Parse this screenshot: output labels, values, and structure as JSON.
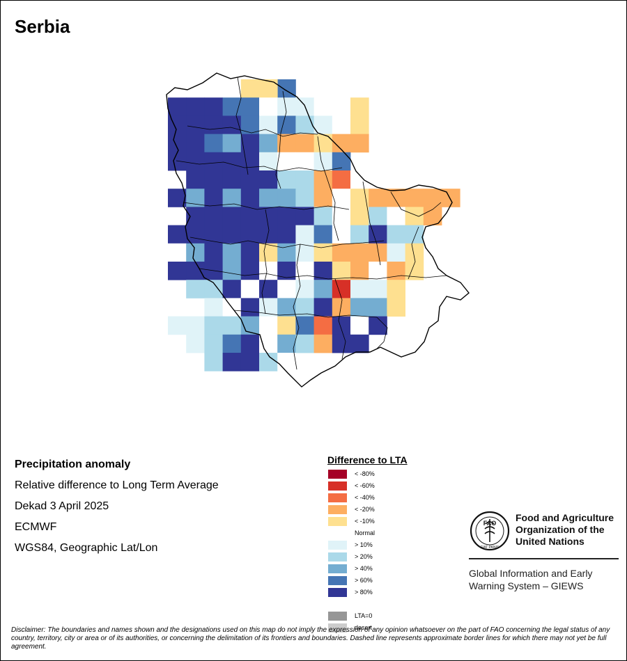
{
  "title": "Serbia",
  "info": {
    "line1": "Precipitation anomaly",
    "line2": "Relative difference to Long Term Average",
    "line3": "Dekad 3 April 2025",
    "line4": "ECMWF",
    "line5": "WGS84, Geographic Lat/Lon"
  },
  "legend": {
    "title": "Difference to LTA",
    "items": [
      {
        "label": "< -80%",
        "color": "#a50026"
      },
      {
        "label": "< -60%",
        "color": "#d73027"
      },
      {
        "label": "< -40%",
        "color": "#f46d43"
      },
      {
        "label": "< -20%",
        "color": "#fdae61"
      },
      {
        "label": "< -10%",
        "color": "#fee090"
      },
      {
        "label": "Normal",
        "color": "#ffffff"
      },
      {
        "label": "> 10%",
        "color": "#e0f3f8"
      },
      {
        "label": "> 20%",
        "color": "#abd9e9"
      },
      {
        "label": "> 40%",
        "color": "#74add1"
      },
      {
        "label": "> 60%",
        "color": "#4575b4"
      },
      {
        "label": "> 80%",
        "color": "#313695"
      },
      {
        "label": "",
        "color": "#ffffff"
      },
      {
        "label": "LTA=0",
        "color": "#969696"
      },
      {
        "label": "desert",
        "color": "#cccccc"
      }
    ]
  },
  "organization": {
    "logo_text": "FAO",
    "logo_motto": "FIAT PANIS",
    "name_line1": "Food and Agriculture",
    "name_line2": "Organization of the",
    "name_line3": "United Nations",
    "giews_line1": "Global Information and Early",
    "giews_line2": "Warning System – GIEWS"
  },
  "disclaimer": "Disclaimer: The boundaries and names shown and the designations used on this map do not imply the expression of any opinion whatsoever on the part of FAO concerning the legal status of any country, territory, city or area or of its authorities, or concerning the delimitation of its frontiers and boundaries. Dashed line represents approximate border lines for which there may not yet be full agreement.",
  "grid": {
    "rows": [
      "....6777......",
      "....777755....",
      "....7777755...",
      "AAAA9AAA.....",
      "AAAAAA9A8.5..",
      "AAAA9A99865..",
      "AAAAAAAAA87..",
      "AAAAAAAAA87..",
      "AAAAAAAAAA.88",
      "AAAAAAAAAAAA8"
    ],
    "cells": [
      [
        0,
        6,
        "#4575b4"
      ],
      [
        0,
        5,
        "#fee090"
      ],
      [
        0,
        4,
        "#fee090"
      ],
      [
        1,
        0,
        "#313695"
      ],
      [
        1,
        1,
        "#313695"
      ],
      [
        1,
        2,
        "#313695"
      ],
      [
        1,
        3,
        "#4575b4"
      ],
      [
        1,
        4,
        "#4575b4"
      ],
      [
        1,
        5,
        "#ffffff"
      ],
      [
        1,
        6,
        "#e0f3f8"
      ],
      [
        1,
        7,
        "#e0f3f8"
      ],
      [
        1,
        8,
        "#ffffff"
      ],
      [
        1,
        9,
        "#ffffff"
      ],
      [
        1,
        10,
        "#fee090"
      ],
      [
        2,
        0,
        "#313695"
      ],
      [
        2,
        1,
        "#313695"
      ],
      [
        2,
        2,
        "#313695"
      ],
      [
        2,
        3,
        "#313695"
      ],
      [
        2,
        4,
        "#4575b4"
      ],
      [
        2,
        5,
        "#e0f3f8"
      ],
      [
        2,
        6,
        "#4575b4"
      ],
      [
        2,
        7,
        "#abd9e9"
      ],
      [
        2,
        8,
        "#e0f3f8"
      ],
      [
        2,
        9,
        "#ffffff"
      ],
      [
        2,
        10,
        "#fee090"
      ],
      [
        3,
        0,
        "#313695"
      ],
      [
        3,
        1,
        "#313695"
      ],
      [
        3,
        2,
        "#4575b4"
      ],
      [
        3,
        3,
        "#74add1"
      ],
      [
        3,
        4,
        "#313695"
      ],
      [
        3,
        5,
        "#74add1"
      ],
      [
        3,
        6,
        "#fdae61"
      ],
      [
        3,
        7,
        "#fdae61"
      ],
      [
        3,
        8,
        "#fee090"
      ],
      [
        3,
        9,
        "#fdae61"
      ],
      [
        3,
        10,
        "#fdae61"
      ],
      [
        4,
        0,
        "#313695"
      ],
      [
        4,
        1,
        "#313695"
      ],
      [
        4,
        2,
        "#313695"
      ],
      [
        4,
        3,
        "#313695"
      ],
      [
        4,
        4,
        "#313695"
      ],
      [
        4,
        5,
        "#e0f3f8"
      ],
      [
        4,
        6,
        "#ffffff"
      ],
      [
        4,
        7,
        "#ffffff"
      ],
      [
        4,
        8,
        "#e0f3f8"
      ],
      [
        4,
        9,
        "#4575b4"
      ],
      [
        5,
        1,
        "#313695"
      ],
      [
        5,
        2,
        "#313695"
      ],
      [
        5,
        3,
        "#313695"
      ],
      [
        5,
        4,
        "#313695"
      ],
      [
        5,
        5,
        "#313695"
      ],
      [
        5,
        6,
        "#abd9e9"
      ],
      [
        5,
        7,
        "#abd9e9"
      ],
      [
        5,
        8,
        "#fdae61"
      ],
      [
        5,
        9,
        "#f46d43"
      ],
      [
        5,
        10,
        "#ffffff"
      ],
      [
        6,
        0,
        "#313695"
      ],
      [
        6,
        1,
        "#74add1"
      ],
      [
        6,
        2,
        "#313695"
      ],
      [
        6,
        3,
        "#74add1"
      ],
      [
        6,
        4,
        "#313695"
      ],
      [
        6,
        5,
        "#74add1"
      ],
      [
        6,
        6,
        "#74add1"
      ],
      [
        6,
        7,
        "#abd9e9"
      ],
      [
        6,
        8,
        "#fdae61"
      ],
      [
        6,
        9,
        "#ffffff"
      ],
      [
        6,
        10,
        "#fee090"
      ],
      [
        6,
        11,
        "#fdae61"
      ],
      [
        6,
        12,
        "#fdae61"
      ],
      [
        6,
        13,
        "#fdae61"
      ],
      [
        6,
        14,
        "#fdae61"
      ],
      [
        6,
        15,
        "#fdae61"
      ],
      [
        7,
        1,
        "#313695"
      ],
      [
        7,
        2,
        "#313695"
      ],
      [
        7,
        3,
        "#313695"
      ],
      [
        7,
        4,
        "#313695"
      ],
      [
        7,
        5,
        "#313695"
      ],
      [
        7,
        6,
        "#313695"
      ],
      [
        7,
        7,
        "#313695"
      ],
      [
        7,
        8,
        "#abd9e9"
      ],
      [
        7,
        9,
        "#ffffff"
      ],
      [
        7,
        10,
        "#fee090"
      ],
      [
        7,
        11,
        "#abd9e9"
      ],
      [
        7,
        12,
        "#ffffff"
      ],
      [
        7,
        13,
        "#fee090"
      ],
      [
        7,
        14,
        "#fdae61"
      ],
      [
        8,
        0,
        "#313695"
      ],
      [
        8,
        1,
        "#313695"
      ],
      [
        8,
        2,
        "#313695"
      ],
      [
        8,
        3,
        "#313695"
      ],
      [
        8,
        4,
        "#313695"
      ],
      [
        8,
        5,
        "#313695"
      ],
      [
        8,
        6,
        "#313695"
      ],
      [
        8,
        7,
        "#e0f3f8"
      ],
      [
        8,
        8,
        "#4575b4"
      ],
      [
        8,
        9,
        "#ffffff"
      ],
      [
        8,
        10,
        "#abd9e9"
      ],
      [
        8,
        11,
        "#313695"
      ],
      [
        8,
        12,
        "#abd9e9"
      ],
      [
        8,
        13,
        "#abd9e9"
      ],
      [
        9,
        0,
        "#ffffff"
      ],
      [
        9,
        1,
        "#74add1"
      ],
      [
        9,
        2,
        "#313695"
      ],
      [
        9,
        3,
        "#74add1"
      ],
      [
        9,
        4,
        "#313695"
      ],
      [
        9,
        5,
        "#fee090"
      ],
      [
        9,
        6,
        "#74add1"
      ],
      [
        9,
        7,
        "#e0f3f8"
      ],
      [
        9,
        8,
        "#fee090"
      ],
      [
        9,
        9,
        "#fdae61"
      ],
      [
        9,
        10,
        "#fdae61"
      ],
      [
        9,
        11,
        "#fdae61"
      ],
      [
        9,
        12,
        "#e0f3f8"
      ],
      [
        9,
        13,
        "#fee090"
      ],
      [
        10,
        0,
        "#313695"
      ],
      [
        10,
        1,
        "#313695"
      ],
      [
        10,
        2,
        "#313695"
      ],
      [
        10,
        3,
        "#74add1"
      ],
      [
        10,
        4,
        "#313695"
      ],
      [
        10,
        5,
        "#ffffff"
      ],
      [
        10,
        6,
        "#313695"
      ],
      [
        10,
        7,
        "#ffffff"
      ],
      [
        10,
        8,
        "#313695"
      ],
      [
        10,
        9,
        "#fee090"
      ],
      [
        10,
        10,
        "#fdae61"
      ],
      [
        10,
        11,
        "#ffffff"
      ],
      [
        10,
        12,
        "#fdae61"
      ],
      [
        10,
        13,
        "#fee090"
      ],
      [
        11,
        1,
        "#abd9e9"
      ],
      [
        11,
        2,
        "#abd9e9"
      ],
      [
        11,
        3,
        "#313695"
      ],
      [
        11,
        4,
        "#ffffff"
      ],
      [
        11,
        5,
        "#313695"
      ],
      [
        11,
        6,
        "#ffffff"
      ],
      [
        11,
        7,
        "#e0f3f8"
      ],
      [
        11,
        8,
        "#74add1"
      ],
      [
        11,
        9,
        "#d73027"
      ],
      [
        11,
        10,
        "#e0f3f8"
      ],
      [
        11,
        11,
        "#e0f3f8"
      ],
      [
        11,
        12,
        "#fee090"
      ],
      [
        12,
        2,
        "#e0f3f8"
      ],
      [
        12,
        3,
        "#ffffff"
      ],
      [
        12,
        4,
        "#313695"
      ],
      [
        12,
        5,
        "#e0f3f8"
      ],
      [
        12,
        6,
        "#74add1"
      ],
      [
        12,
        7,
        "#abd9e9"
      ],
      [
        12,
        8,
        "#313695"
      ],
      [
        12,
        9,
        "#fdae61"
      ],
      [
        12,
        10,
        "#74add1"
      ],
      [
        12,
        11,
        "#74add1"
      ],
      [
        12,
        12,
        "#fee090"
      ],
      [
        13,
        0,
        "#e0f3f8"
      ],
      [
        13,
        1,
        "#e0f3f8"
      ],
      [
        13,
        2,
        "#abd9e9"
      ],
      [
        13,
        3,
        "#abd9e9"
      ],
      [
        13,
        4,
        "#74add1"
      ],
      [
        13,
        5,
        "#ffffff"
      ],
      [
        13,
        6,
        "#fee090"
      ],
      [
        13,
        7,
        "#4575b4"
      ],
      [
        13,
        8,
        "#f46d43"
      ],
      [
        13,
        9,
        "#313695"
      ],
      [
        13,
        10,
        "#ffffff"
      ],
      [
        13,
        11,
        "#313695"
      ],
      [
        14,
        1,
        "#e0f3f8"
      ],
      [
        14,
        2,
        "#abd9e9"
      ],
      [
        14,
        3,
        "#4575b4"
      ],
      [
        14,
        4,
        "#313695"
      ],
      [
        14,
        5,
        "#ffffff"
      ],
      [
        14,
        6,
        "#74add1"
      ],
      [
        14,
        7,
        "#abd9e9"
      ],
      [
        14,
        8,
        "#fdae61"
      ],
      [
        14,
        9,
        "#313695"
      ],
      [
        14,
        10,
        "#313695"
      ],
      [
        15,
        2,
        "#abd9e9"
      ],
      [
        15,
        3,
        "#313695"
      ],
      [
        15,
        4,
        "#313695"
      ],
      [
        15,
        5,
        "#abd9e9"
      ],
      [
        15,
        6,
        "#ffffff"
      ]
    ]
  }
}
